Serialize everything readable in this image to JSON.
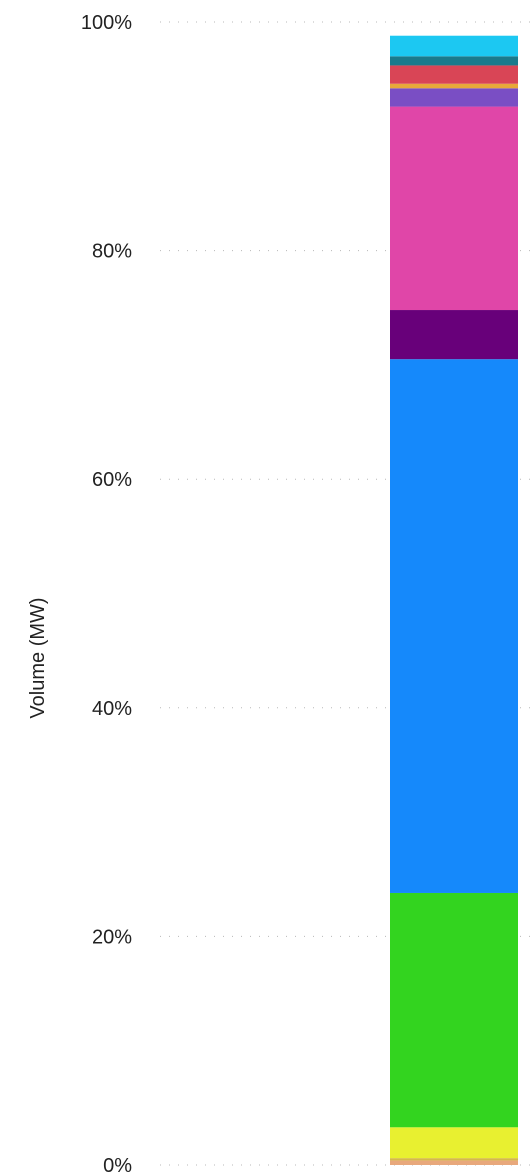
{
  "chart_data": {
    "type": "bar",
    "stacked": true,
    "normalized": true,
    "ylabel": "Volume (MW)",
    "ylim": [
      0,
      100
    ],
    "yticks": [
      {
        "value": 0,
        "label": "0%"
      },
      {
        "value": 20,
        "label": "20%"
      },
      {
        "value": 40,
        "label": "40%"
      },
      {
        "value": 60,
        "label": "60%"
      },
      {
        "value": 80,
        "label": "80%"
      },
      {
        "value": 100,
        "label": "100%"
      }
    ],
    "grid": true,
    "legend": "none",
    "segments": [
      {
        "color": "#e8a87c",
        "value": 0.4
      },
      {
        "color": "#d4b84a",
        "value": 0.2
      },
      {
        "color": "#e8f030",
        "value": 2.7
      },
      {
        "color": "#33d41f",
        "value": 20.5
      },
      {
        "color": "#1589fb",
        "value": 46.7
      },
      {
        "color": "#68007a",
        "value": 4.3
      },
      {
        "color": "#e046a8",
        "value": 17.8
      },
      {
        "color": "#7a4ec4",
        "value": 1.6
      },
      {
        "color": "#e8a83a",
        "value": 0.4
      },
      {
        "color": "#d94556",
        "value": 1.6
      },
      {
        "color": "#1a7a8c",
        "value": 0.8
      },
      {
        "color": "#1cc8f2",
        "value": 1.8
      }
    ]
  }
}
